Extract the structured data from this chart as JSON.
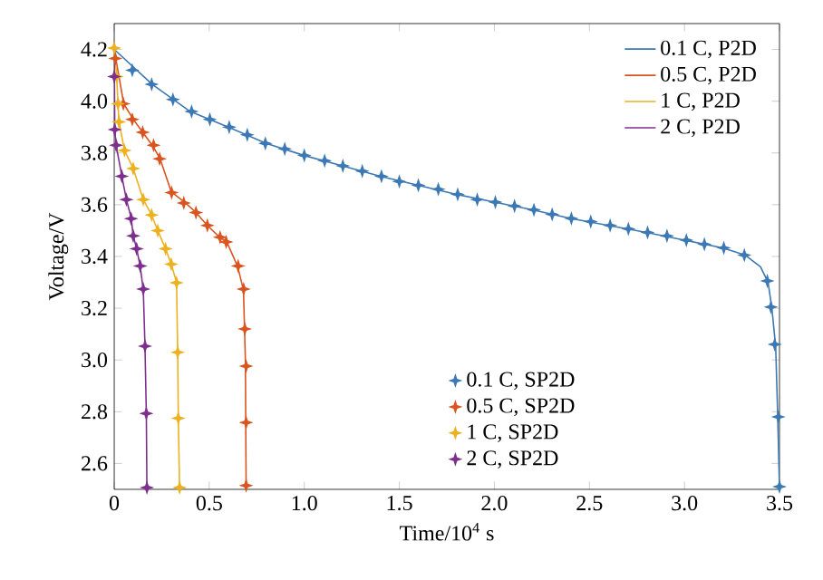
{
  "chart_data": {
    "type": "line",
    "xlabel": "Time/10$^{4}$ s",
    "ylabel": "Voltage/V",
    "xlim": [
      0,
      3.5
    ],
    "ylim": [
      2.5,
      4.3
    ],
    "xticks": [
      0,
      0.5,
      {
        "value": 1,
        "label": "1.0"
      },
      1.5,
      {
        "value": 2,
        "label": "2.0"
      },
      2.5,
      {
        "value": 3,
        "label": "3.0"
      },
      3.5
    ],
    "yticks": [
      2.6,
      2.8,
      {
        "value": 3,
        "label": "3.0"
      },
      3.2,
      3.4,
      3.6,
      3.8,
      {
        "value": 4,
        "label": "4.0"
      },
      4.2
    ],
    "legend": "top right",
    "grid": false,
    "series": [
      {
        "name": "0.1 C, P2D",
        "color": "#3b78b4",
        "x": [
          0,
          0.2,
          0.4,
          0.6,
          0.8,
          1.0,
          1.2,
          1.4,
          1.6,
          1.8,
          2.0,
          2.2,
          2.4,
          2.6,
          2.8,
          3.0,
          3.2,
          3.32,
          3.4,
          3.44,
          3.46,
          3.48,
          3.49,
          3.5
        ],
        "values": [
          4.2,
          4.065,
          3.96,
          3.9,
          3.837,
          3.79,
          3.75,
          3.71,
          3.675,
          3.64,
          3.61,
          3.58,
          3.547,
          3.52,
          3.493,
          3.463,
          3.433,
          3.405,
          3.36,
          3.3,
          3.2,
          3.05,
          2.8,
          2.5
        ]
      },
      {
        "name": "0.5 C, P2D",
        "color": "#d9541e",
        "x": [
          0,
          0.05,
          0.1,
          0.15,
          0.2,
          0.24,
          0.3,
          0.37,
          0.43,
          0.49,
          0.56,
          0.59,
          0.65,
          0.68,
          0.69,
          0.694
        ],
        "values": [
          4.2,
          3.99,
          3.93,
          3.88,
          3.83,
          3.78,
          3.65,
          3.61,
          3.57,
          3.52,
          3.47,
          3.46,
          3.36,
          3.27,
          3.0,
          2.5
        ]
      },
      {
        "name": "1 C, P2D",
        "color": "#edb120",
        "x": [
          0,
          0.013,
          0.02,
          0.025,
          0.054,
          0.1,
          0.153,
          0.197,
          0.229,
          0.27,
          0.3,
          0.328,
          0.334,
          0.337,
          0.344
        ],
        "values": [
          4.2,
          4.095,
          3.99,
          3.92,
          3.81,
          3.74,
          3.62,
          3.56,
          3.5,
          3.43,
          3.37,
          3.3,
          3.03,
          2.78,
          2.5
        ]
      },
      {
        "name": "2 C, P2D",
        "color": "#7e2f8e",
        "x": [
          0,
          0.003,
          0.01,
          0.04,
          0.064,
          0.089,
          0.1,
          0.118,
          0.137,
          0.153,
          0.162,
          0.169,
          0.172
        ],
        "values": [
          4.2,
          3.89,
          3.83,
          3.71,
          3.62,
          3.55,
          3.48,
          3.43,
          3.36,
          3.27,
          3.05,
          2.79,
          2.5
        ]
      },
      {
        "name": "0.1 C, SP2D",
        "type": "scatter",
        "marker": "star",
        "color": "#3b78b4",
        "x": [
          0.095,
          0.197,
          0.309,
          0.407,
          0.503,
          0.605,
          0.7,
          0.795,
          0.897,
          1.0,
          1.107,
          1.203,
          1.305,
          1.406,
          1.5,
          1.6,
          1.705,
          1.807,
          1.91,
          2.005,
          2.106,
          2.208,
          2.304,
          2.405,
          2.507,
          2.609,
          2.705,
          2.806,
          2.908,
          3.01,
          3.105,
          3.207,
          3.315,
          3.436,
          3.455,
          3.475,
          3.494,
          3.5
        ],
        "values": [
          4.12,
          4.065,
          4.007,
          3.96,
          3.93,
          3.9,
          3.87,
          3.837,
          3.816,
          3.79,
          3.77,
          3.75,
          3.73,
          3.71,
          3.69,
          3.675,
          3.66,
          3.64,
          3.62,
          3.61,
          3.595,
          3.58,
          3.563,
          3.547,
          3.535,
          3.52,
          3.507,
          3.493,
          3.48,
          3.463,
          3.447,
          3.433,
          3.405,
          3.305,
          3.205,
          3.06,
          2.78,
          2.51
        ]
      },
      {
        "name": "0.5 C, SP2D",
        "type": "scatter",
        "marker": "star",
        "color": "#d9541e",
        "x": [
          0.006,
          0.048,
          0.095,
          0.15,
          0.207,
          0.239,
          0.302,
          0.366,
          0.43,
          0.49,
          0.557,
          0.589,
          0.652,
          0.681,
          0.687,
          0.694,
          0.694,
          0.694
        ],
        "values": [
          4.165,
          3.99,
          3.93,
          3.88,
          3.83,
          3.777,
          3.647,
          3.607,
          3.57,
          3.52,
          3.474,
          3.456,
          3.363,
          3.274,
          3.12,
          2.976,
          2.758,
          2.515
        ]
      },
      {
        "name": "1 C, SP2D",
        "type": "scatter",
        "marker": "star",
        "color": "#edb120",
        "x": [
          0,
          0.013,
          0.02,
          0.025,
          0.054,
          0.1,
          0.153,
          0.197,
          0.229,
          0.27,
          0.3,
          0.328,
          0.334,
          0.337,
          0.344
        ],
        "values": [
          4.205,
          4.095,
          3.99,
          3.92,
          3.81,
          3.74,
          3.62,
          3.56,
          3.5,
          3.43,
          3.37,
          3.298,
          3.03,
          2.775,
          2.507
        ]
      },
      {
        "name": "2 C, SP2D",
        "type": "scatter",
        "marker": "star",
        "color": "#7e2f8e",
        "x": [
          0,
          0.003,
          0.01,
          0.04,
          0.064,
          0.089,
          0.1,
          0.118,
          0.137,
          0.153,
          0.162,
          0.169,
          0.172
        ],
        "values": [
          4.095,
          3.89,
          3.83,
          3.71,
          3.62,
          3.546,
          3.48,
          3.43,
          3.363,
          3.274,
          3.053,
          2.793,
          2.507
        ]
      }
    ]
  }
}
